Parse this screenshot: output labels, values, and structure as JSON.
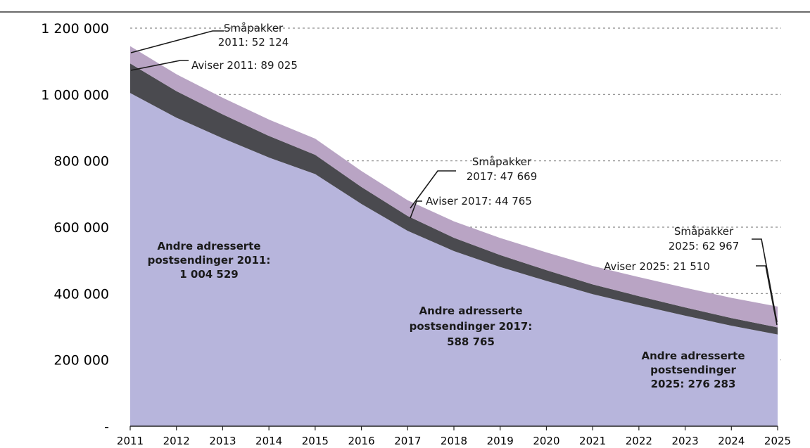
{
  "chart_data": {
    "type": "area",
    "stacked": true,
    "x": [
      2011,
      2012,
      2013,
      2014,
      2015,
      2016,
      2017,
      2018,
      2019,
      2020,
      2021,
      2022,
      2023,
      2024,
      2025
    ],
    "ylim": [
      0,
      1200000
    ],
    "yticks": [
      {
        "value": 0,
        "label": "-"
      },
      {
        "value": 200000,
        "label": "200 000"
      },
      {
        "value": 400000,
        "label": "400 000"
      },
      {
        "value": 600000,
        "label": "600 000"
      },
      {
        "value": 800000,
        "label": "800 000"
      },
      {
        "value": 1000000,
        "label": "1 000 000"
      },
      {
        "value": 1200000,
        "label": "1 200 000"
      }
    ],
    "grid": true,
    "series": [
      {
        "name": "Andre adresserte postsendinger",
        "color": "#b7b5dc",
        "values": [
          1004529,
          930000,
          868000,
          810000,
          760000,
          670000,
          588765,
          528000,
          480000,
          438000,
          398000,
          365000,
          333000,
          303000,
          276283
        ]
      },
      {
        "name": "Aviser",
        "color": "#4a4a4f",
        "values": [
          89025,
          80000,
          72000,
          65000,
          58000,
          51000,
          44765,
          40000,
          36000,
          32500,
          29500,
          27000,
          25000,
          23000,
          21510
        ]
      },
      {
        "name": "Småpakker",
        "color": "#b9a4c4",
        "values": [
          52124,
          51000,
          50000,
          49500,
          49000,
          48300,
          47669,
          49500,
          51500,
          53500,
          55500,
          57500,
          59500,
          61000,
          62967
        ]
      }
    ],
    "annotations": [
      {
        "id": "smapakker-2011",
        "lines": [
          "Småpakker",
          "2011: 52 124"
        ]
      },
      {
        "id": "aviser-2011",
        "lines": [
          "Aviser 2011: 89 025"
        ]
      },
      {
        "id": "andre-2011",
        "lines": [
          "Andre adresserte",
          "postsendinger 2011:",
          "1 004 529"
        ]
      },
      {
        "id": "smapakker-2017",
        "lines": [
          "Småpakker",
          "2017: 47 669"
        ]
      },
      {
        "id": "aviser-2017",
        "lines": [
          "Aviser 2017: 44 765"
        ]
      },
      {
        "id": "andre-2017",
        "lines": [
          "Andre adresserte",
          "postsendinger  2017:",
          "588 765"
        ]
      },
      {
        "id": "smapakker-2025",
        "lines": [
          "Småpakker",
          "2025: 62 967"
        ]
      },
      {
        "id": "aviser-2025",
        "lines": [
          "Aviser 2025: 21 510"
        ]
      },
      {
        "id": "andre-2025",
        "lines": [
          "Andre adresserte",
          "postsendinger",
          "2025: 276 283"
        ]
      }
    ]
  }
}
